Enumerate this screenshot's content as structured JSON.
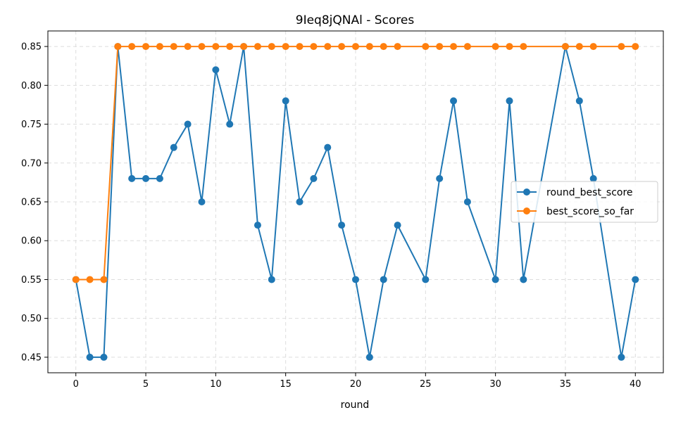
{
  "chart_data": {
    "type": "line",
    "title": "9Ieq8jQNAl - Scores",
    "xlabel": "round",
    "ylabel": "",
    "xlim": [
      -2,
      42
    ],
    "ylim": [
      0.43,
      0.87
    ],
    "xticks": [
      0,
      5,
      10,
      15,
      20,
      25,
      30,
      35,
      40
    ],
    "yticks": [
      0.45,
      0.5,
      0.55,
      0.6,
      0.65,
      0.7,
      0.75,
      0.8,
      0.85
    ],
    "grid": true,
    "legend_position": "center-right",
    "series": [
      {
        "name": "round_best_score",
        "color": "#1f77b4",
        "x": [
          0,
          1,
          2,
          3,
          4,
          5,
          6,
          7,
          8,
          9,
          10,
          11,
          12,
          13,
          14,
          15,
          16,
          17,
          18,
          19,
          20,
          21,
          22,
          23,
          25,
          26,
          27,
          28,
          30,
          31,
          32,
          35,
          36,
          37,
          39,
          40
        ],
        "y": [
          0.55,
          0.45,
          0.45,
          0.85,
          0.68,
          0.68,
          0.68,
          0.72,
          0.75,
          0.65,
          0.82,
          0.75,
          0.85,
          0.62,
          0.55,
          0.78,
          0.65,
          0.68,
          0.72,
          0.62,
          0.55,
          0.45,
          0.55,
          0.62,
          0.55,
          0.68,
          0.78,
          0.65,
          0.55,
          0.78,
          0.55,
          0.85,
          0.78,
          0.68,
          0.45,
          0.55
        ]
      },
      {
        "name": "best_score_so_far",
        "color": "#ff7f0e",
        "x": [
          0,
          1,
          2,
          3,
          4,
          5,
          6,
          7,
          8,
          9,
          10,
          11,
          12,
          13,
          14,
          15,
          16,
          17,
          18,
          19,
          20,
          21,
          22,
          23,
          25,
          26,
          27,
          28,
          30,
          31,
          32,
          35,
          36,
          37,
          39,
          40
        ],
        "y": [
          0.55,
          0.55,
          0.55,
          0.85,
          0.85,
          0.85,
          0.85,
          0.85,
          0.85,
          0.85,
          0.85,
          0.85,
          0.85,
          0.85,
          0.85,
          0.85,
          0.85,
          0.85,
          0.85,
          0.85,
          0.85,
          0.85,
          0.85,
          0.85,
          0.85,
          0.85,
          0.85,
          0.85,
          0.85,
          0.85,
          0.85,
          0.85,
          0.85,
          0.85,
          0.85,
          0.85
        ]
      }
    ]
  }
}
